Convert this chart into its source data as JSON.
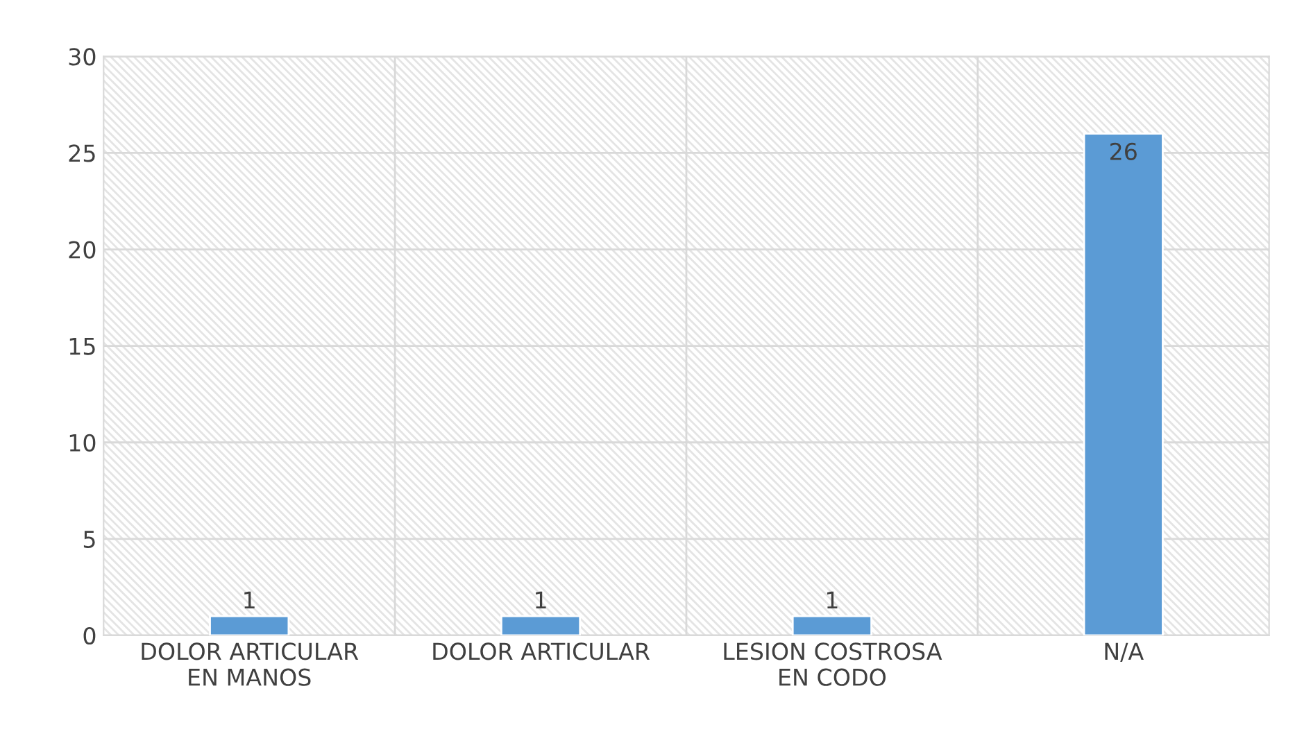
{
  "chart_data": {
    "type": "bar",
    "categories": [
      "DOLOR ARTICULAR\nEN MANOS",
      "DOLOR ARTICULAR",
      "LESION COSTROSA\nEN CODO",
      "N/A"
    ],
    "values": [
      1,
      1,
      1,
      26
    ],
    "color": "#5b9bd5",
    "ylim": [
      0,
      30
    ],
    "yticks": [
      0,
      5,
      10,
      15,
      20,
      25,
      30
    ],
    "grid": true,
    "data_labels": true
  }
}
